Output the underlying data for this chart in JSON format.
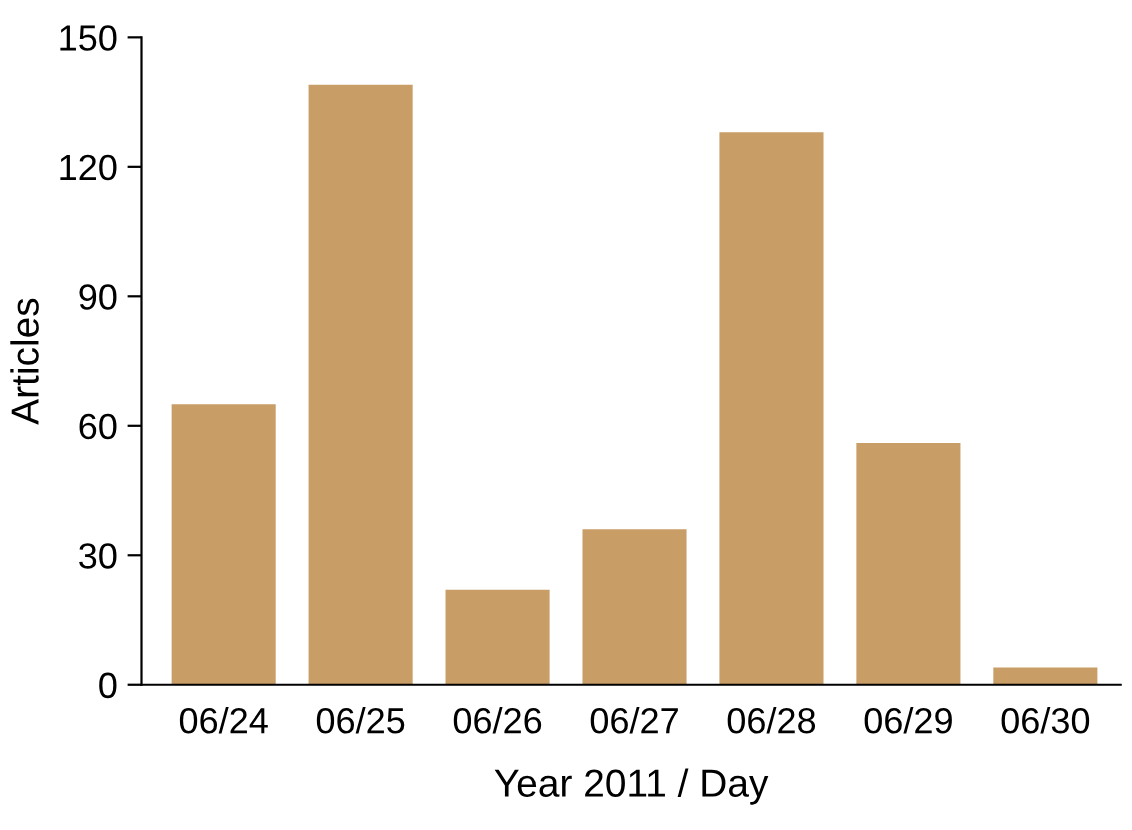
{
  "chart_data": {
    "type": "bar",
    "xlabel": "Year 2011 / Day",
    "ylabel": "Articles",
    "categories": [
      "06/24",
      "06/25",
      "06/26",
      "06/27",
      "06/28",
      "06/29",
      "06/30"
    ],
    "values": [
      65,
      139,
      22,
      36,
      128,
      56,
      4
    ],
    "color": "#c99d66",
    "ylim": [
      0,
      150
    ],
    "yticks": [
      0,
      30,
      60,
      90,
      120,
      150
    ],
    "grid": false
  }
}
